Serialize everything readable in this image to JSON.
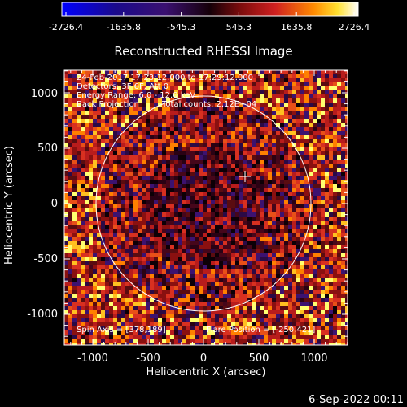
{
  "colorbar": {
    "ticks": [
      "-2726.4",
      "-1635.8",
      "-545.3",
      "545.3",
      "1635.8",
      "2726.4"
    ]
  },
  "plot": {
    "title": "Reconstructed RHESSI Image",
    "xlabel": "Heliocentric X (arcsec)",
    "ylabel": "Heliocentric Y (arcsec)",
    "x_ticks": [
      "-1000",
      "-500",
      "0",
      "500",
      "1000"
    ],
    "y_ticks": [
      "1000",
      "500",
      "0",
      "-500",
      "-1000"
    ],
    "annotations": {
      "time_range": "24-Feb-2017 17:23:12.000 to 17:29:12.000",
      "detectors": "Detectors: 3F 6F, Att 0",
      "energy": "Energy Range: 6.0 - 12.0 keV",
      "method": "Back Projection",
      "counts": "Total counts: 2.12E+04",
      "spin_axis": "Spin Axis = [378,189]",
      "flare_position": "Flare Position = [-250,421]"
    }
  },
  "footer": {
    "timestamp": "6-Sep-2022 00:11"
  },
  "colors": {
    "background": "#000000",
    "foreground": "#ffffff"
  }
}
